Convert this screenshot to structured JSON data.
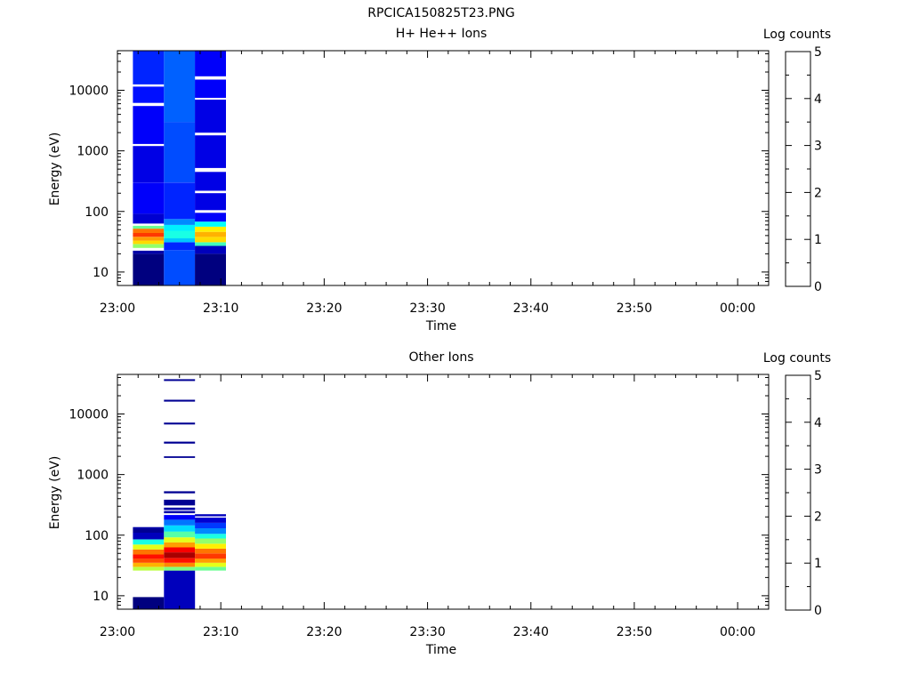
{
  "figure_title": "RPCICA150825T23.PNG",
  "colors": {
    "background": "#ffffff",
    "axes": "#000000",
    "text": "#000000",
    "colormap": [
      "#00007f",
      "#0000ff",
      "#007fff",
      "#00ffff",
      "#7fff7f",
      "#ffff00",
      "#ff7f00",
      "#ff0000",
      "#7f0000"
    ]
  },
  "chart_data": [
    {
      "type": "heatmap",
      "title": "H+ He++ Ions",
      "xlabel": "Time",
      "ylabel": "Energy (eV)",
      "yscale": "log",
      "ylim": [
        6,
        45000
      ],
      "xlim": [
        "23:00",
        "00:03"
      ],
      "xticks": [
        "23:00",
        "23:10",
        "23:20",
        "23:30",
        "23:40",
        "23:50",
        "00:00"
      ],
      "yticks": [
        "10",
        "100",
        "1000",
        "10000"
      ],
      "colorbar": {
        "label": "Log counts",
        "range": [
          0,
          5
        ],
        "ticks": [
          "0",
          "1",
          "2",
          "3",
          "4",
          "5"
        ]
      },
      "columns": [
        {
          "start": "23:01.5",
          "end": "23:04.5",
          "cells": [
            {
              "e0": 6,
              "e1": 20,
              "v": 0.0
            },
            {
              "e0": 20,
              "e1": 22.5,
              "v": 0.2
            },
            {
              "e0": 25,
              "e1": 29,
              "v": 2.6
            },
            {
              "e0": 29,
              "e1": 33,
              "v": 3.3
            },
            {
              "e0": 33,
              "e1": 38,
              "v": 3.6
            },
            {
              "e0": 38,
              "e1": 44,
              "v": 4.1
            },
            {
              "e0": 44,
              "e1": 52,
              "v": 3.8
            },
            {
              "e0": 52,
              "e1": 58,
              "v": 2.4
            },
            {
              "e0": 63,
              "e1": 92,
              "v": 0.4
            },
            {
              "e0": 92,
              "e1": 300,
              "v": 0.6
            },
            {
              "e0": 300,
              "e1": 1200,
              "v": 0.5
            },
            {
              "e0": 1300,
              "e1": 5500,
              "v": 0.6
            },
            {
              "e0": 6200,
              "e1": 11500,
              "v": 0.7
            },
            {
              "e0": 12500,
              "e1": 45000,
              "v": 0.8
            }
          ]
        },
        {
          "start": "23:04.5",
          "end": "23:07.5",
          "cells": [
            {
              "e0": 6,
              "e1": 23,
              "v": 1.0
            },
            {
              "e0": 23,
              "e1": 31,
              "v": 0.8
            },
            {
              "e0": 31,
              "e1": 36,
              "v": 1.6
            },
            {
              "e0": 36,
              "e1": 48,
              "v": 2.0
            },
            {
              "e0": 48,
              "e1": 60,
              "v": 1.8
            },
            {
              "e0": 60,
              "e1": 75,
              "v": 1.3
            },
            {
              "e0": 75,
              "e1": 300,
              "v": 0.8
            },
            {
              "e0": 300,
              "e1": 3000,
              "v": 1.0
            },
            {
              "e0": 3000,
              "e1": 45000,
              "v": 1.1
            }
          ]
        },
        {
          "start": "23:07.5",
          "end": "23:10.5",
          "cells": [
            {
              "e0": 6,
              "e1": 20,
              "v": 0.0
            },
            {
              "e0": 20,
              "e1": 27,
              "v": 0.3
            },
            {
              "e0": 27,
              "e1": 31,
              "v": 2.2
            },
            {
              "e0": 31,
              "e1": 38,
              "v": 3.3
            },
            {
              "e0": 38,
              "e1": 46,
              "v": 3.5
            },
            {
              "e0": 46,
              "e1": 56,
              "v": 3.2
            },
            {
              "e0": 56,
              "e1": 68,
              "v": 1.9
            },
            {
              "e0": 68,
              "e1": 95,
              "v": 0.6
            },
            {
              "e0": 105,
              "e1": 200,
              "v": 0.5
            },
            {
              "e0": 220,
              "e1": 450,
              "v": 0.5
            },
            {
              "e0": 520,
              "e1": 1800,
              "v": 0.5
            },
            {
              "e0": 2000,
              "e1": 7000,
              "v": 0.5
            },
            {
              "e0": 7500,
              "e1": 15000,
              "v": 0.6
            },
            {
              "e0": 17000,
              "e1": 45000,
              "v": 0.6
            }
          ]
        }
      ]
    },
    {
      "type": "heatmap",
      "title": "Other Ions",
      "xlabel": "Time",
      "ylabel": "Energy (eV)",
      "yscale": "log",
      "ylim": [
        6,
        45000
      ],
      "xlim": [
        "23:00",
        "00:03"
      ],
      "xticks": [
        "23:00",
        "23:10",
        "23:20",
        "23:30",
        "23:40",
        "23:50",
        "00:00"
      ],
      "yticks": [
        "10",
        "100",
        "1000",
        "10000"
      ],
      "colorbar": {
        "label": "Log counts",
        "range": [
          0,
          5
        ],
        "ticks": [
          "0",
          "1",
          "2",
          "3",
          "4",
          "5"
        ]
      },
      "columns": [
        {
          "start": "23:01.5",
          "end": "23:04.5",
          "cells": [
            {
              "e0": 6,
              "e1": 9.5,
              "v": 0.0
            },
            {
              "e0": 26,
              "e1": 30,
              "v": 2.8
            },
            {
              "e0": 30,
              "e1": 35,
              "v": 3.5
            },
            {
              "e0": 35,
              "e1": 41,
              "v": 4.0
            },
            {
              "e0": 41,
              "e1": 48,
              "v": 4.3
            },
            {
              "e0": 48,
              "e1": 58,
              "v": 3.8
            },
            {
              "e0": 58,
              "e1": 70,
              "v": 3.0
            },
            {
              "e0": 70,
              "e1": 85,
              "v": 2.0
            },
            {
              "e0": 85,
              "e1": 110,
              "v": 0.3
            },
            {
              "e0": 110,
              "e1": 128,
              "v": 0.1
            },
            {
              "e0": 128,
              "e1": 136,
              "v": 0.2
            }
          ]
        },
        {
          "start": "23:04.5",
          "end": "23:07.5",
          "cells": [
            {
              "e0": 6,
              "e1": 26,
              "v": 0.3
            },
            {
              "e0": 26,
              "e1": 30,
              "v": 2.5
            },
            {
              "e0": 30,
              "e1": 35,
              "v": 3.7
            },
            {
              "e0": 35,
              "e1": 42,
              "v": 4.3
            },
            {
              "e0": 42,
              "e1": 52,
              "v": 4.8
            },
            {
              "e0": 52,
              "e1": 63,
              "v": 4.4
            },
            {
              "e0": 63,
              "e1": 76,
              "v": 3.6
            },
            {
              "e0": 76,
              "e1": 92,
              "v": 3.0
            },
            {
              "e0": 92,
              "e1": 115,
              "v": 2.3
            },
            {
              "e0": 115,
              "e1": 145,
              "v": 1.7
            },
            {
              "e0": 145,
              "e1": 180,
              "v": 1.2
            },
            {
              "e0": 180,
              "e1": 215,
              "v": 0.6
            },
            {
              "e0": 230,
              "e1": 250,
              "v": 0.2
            },
            {
              "e0": 260,
              "e1": 285,
              "v": 0.2
            },
            {
              "e0": 310,
              "e1": 385,
              "v": 0.1
            },
            {
              "e0": 490,
              "e1": 530,
              "v": 0.1
            },
            {
              "e0": 1880,
              "e1": 2000,
              "v": 0.1
            },
            {
              "e0": 3250,
              "e1": 3500,
              "v": 0.1
            },
            {
              "e0": 6700,
              "e1": 7200,
              "v": 0.1
            },
            {
              "e0": 16000,
              "e1": 17200,
              "v": 0.1
            },
            {
              "e0": 35000,
              "e1": 37500,
              "v": 0.1
            }
          ]
        },
        {
          "start": "23:07.5",
          "end": "23:10.5",
          "cells": [
            {
              "e0": 26,
              "e1": 30,
              "v": 2.4
            },
            {
              "e0": 30,
              "e1": 35,
              "v": 3.0
            },
            {
              "e0": 35,
              "e1": 41,
              "v": 3.6
            },
            {
              "e0": 41,
              "e1": 50,
              "v": 4.1
            },
            {
              "e0": 50,
              "e1": 60,
              "v": 3.8
            },
            {
              "e0": 60,
              "e1": 72,
              "v": 3.2
            },
            {
              "e0": 72,
              "e1": 88,
              "v": 2.6
            },
            {
              "e0": 88,
              "e1": 105,
              "v": 2.0
            },
            {
              "e0": 105,
              "e1": 130,
              "v": 1.3
            },
            {
              "e0": 130,
              "e1": 160,
              "v": 0.9
            },
            {
              "e0": 160,
              "e1": 195,
              "v": 0.4
            },
            {
              "e0": 205,
              "e1": 222,
              "v": 0.3
            }
          ]
        }
      ]
    }
  ]
}
